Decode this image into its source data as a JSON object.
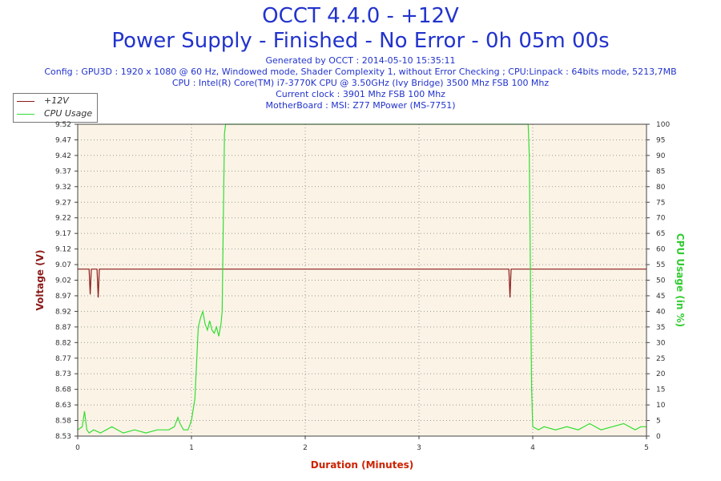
{
  "header": {
    "title": "OCCT 4.4.0 - +12V",
    "subtitle": "Power Supply - Finished - No Error - 0h 05m 00s",
    "generated": "Generated by OCCT : 2014-05-10 15:35:11",
    "config": "Config : GPU3D : 1920 x 1080 @ 60 Hz, Windowed mode, Shader Complexity 1, without Error Checking ; CPU:Linpack : 64bits mode, 5213,7MB",
    "cpu": "CPU : Intel(R) Core(TM) i7-3770K CPU @ 3.50GHz (Ivy Bridge) 3500 Mhz FSB 100 Mhz",
    "clock": "Current clock : 3901 Mhz FSB 100 Mhz",
    "motherboard": "MotherBoard : MSI: Z77 MPower (MS-7751)"
  },
  "colors": {
    "voltage": "#8b1a1a",
    "cpu": "#33dd33",
    "plot_bg": "#fbf4e6",
    "axis_left": "#8b1a1a",
    "axis_right": "#33cc33",
    "axis_bottom": "#cc2200"
  },
  "chart_data": {
    "type": "line",
    "xlabel": "Duration (Minutes)",
    "ylabel_left": "Voltage (V)",
    "ylabel_right": "CPU Usage (in %)",
    "xlim": [
      0,
      5
    ],
    "ylim_left": [
      8.53,
      9.52
    ],
    "ylim_right": [
      0,
      100
    ],
    "x_ticks": [
      "0",
      "1",
      "2",
      "3",
      "4",
      "5"
    ],
    "y_left_ticks": [
      "8.53",
      "8.58",
      "8.63",
      "8.68",
      "8.73",
      "8.77",
      "8.82",
      "8.87",
      "8.92",
      "8.97",
      "9.02",
      "9.07",
      "9.12",
      "9.17",
      "9.22",
      "9.27",
      "9.32",
      "9.37",
      "9.42",
      "9.47",
      "9.52"
    ],
    "y_right_ticks": [
      "0",
      "5",
      "10",
      "15",
      "20",
      "25",
      "30",
      "35",
      "40",
      "45",
      "50",
      "55",
      "60",
      "65",
      "70",
      "75",
      "80",
      "85",
      "90",
      "95",
      "100"
    ],
    "grid": true,
    "legend_position": "top-left",
    "series": [
      {
        "name": "+12V",
        "axis": "left",
        "x": [
          0,
          0.1,
          0.11,
          0.12,
          0.13,
          0.14,
          0.17,
          0.18,
          0.19,
          0.2,
          3.79,
          3.8,
          3.81,
          5
        ],
        "y": [
          9.06,
          9.06,
          8.98,
          9.06,
          9.06,
          9.06,
          9.06,
          8.97,
          9.06,
          9.06,
          9.06,
          8.97,
          9.06,
          9.06
        ]
      },
      {
        "name": "CPU Usage",
        "axis": "right",
        "x": [
          0,
          0.04,
          0.06,
          0.08,
          0.1,
          0.14,
          0.2,
          0.3,
          0.4,
          0.5,
          0.6,
          0.7,
          0.8,
          0.85,
          0.88,
          0.9,
          0.93,
          0.97,
          1.0,
          1.03,
          1.06,
          1.08,
          1.1,
          1.12,
          1.14,
          1.16,
          1.18,
          1.2,
          1.22,
          1.24,
          1.26,
          1.27,
          1.28,
          1.29,
          1.3,
          3.96,
          3.97,
          3.98,
          3.99,
          4.0,
          4.05,
          4.1,
          4.2,
          4.3,
          4.4,
          4.5,
          4.6,
          4.7,
          4.8,
          4.9,
          4.95,
          5.0
        ],
        "y": [
          2,
          3,
          8,
          2,
          1,
          2,
          1,
          3,
          1,
          2,
          1,
          2,
          2,
          3,
          6,
          4,
          2,
          2,
          5,
          12,
          35,
          38,
          40,
          36,
          34,
          37,
          34,
          33,
          35,
          32,
          36,
          40,
          70,
          97,
          100,
          100,
          90,
          50,
          15,
          3,
          2,
          3,
          2,
          3,
          2,
          4,
          2,
          3,
          4,
          2,
          3,
          3
        ]
      }
    ]
  }
}
